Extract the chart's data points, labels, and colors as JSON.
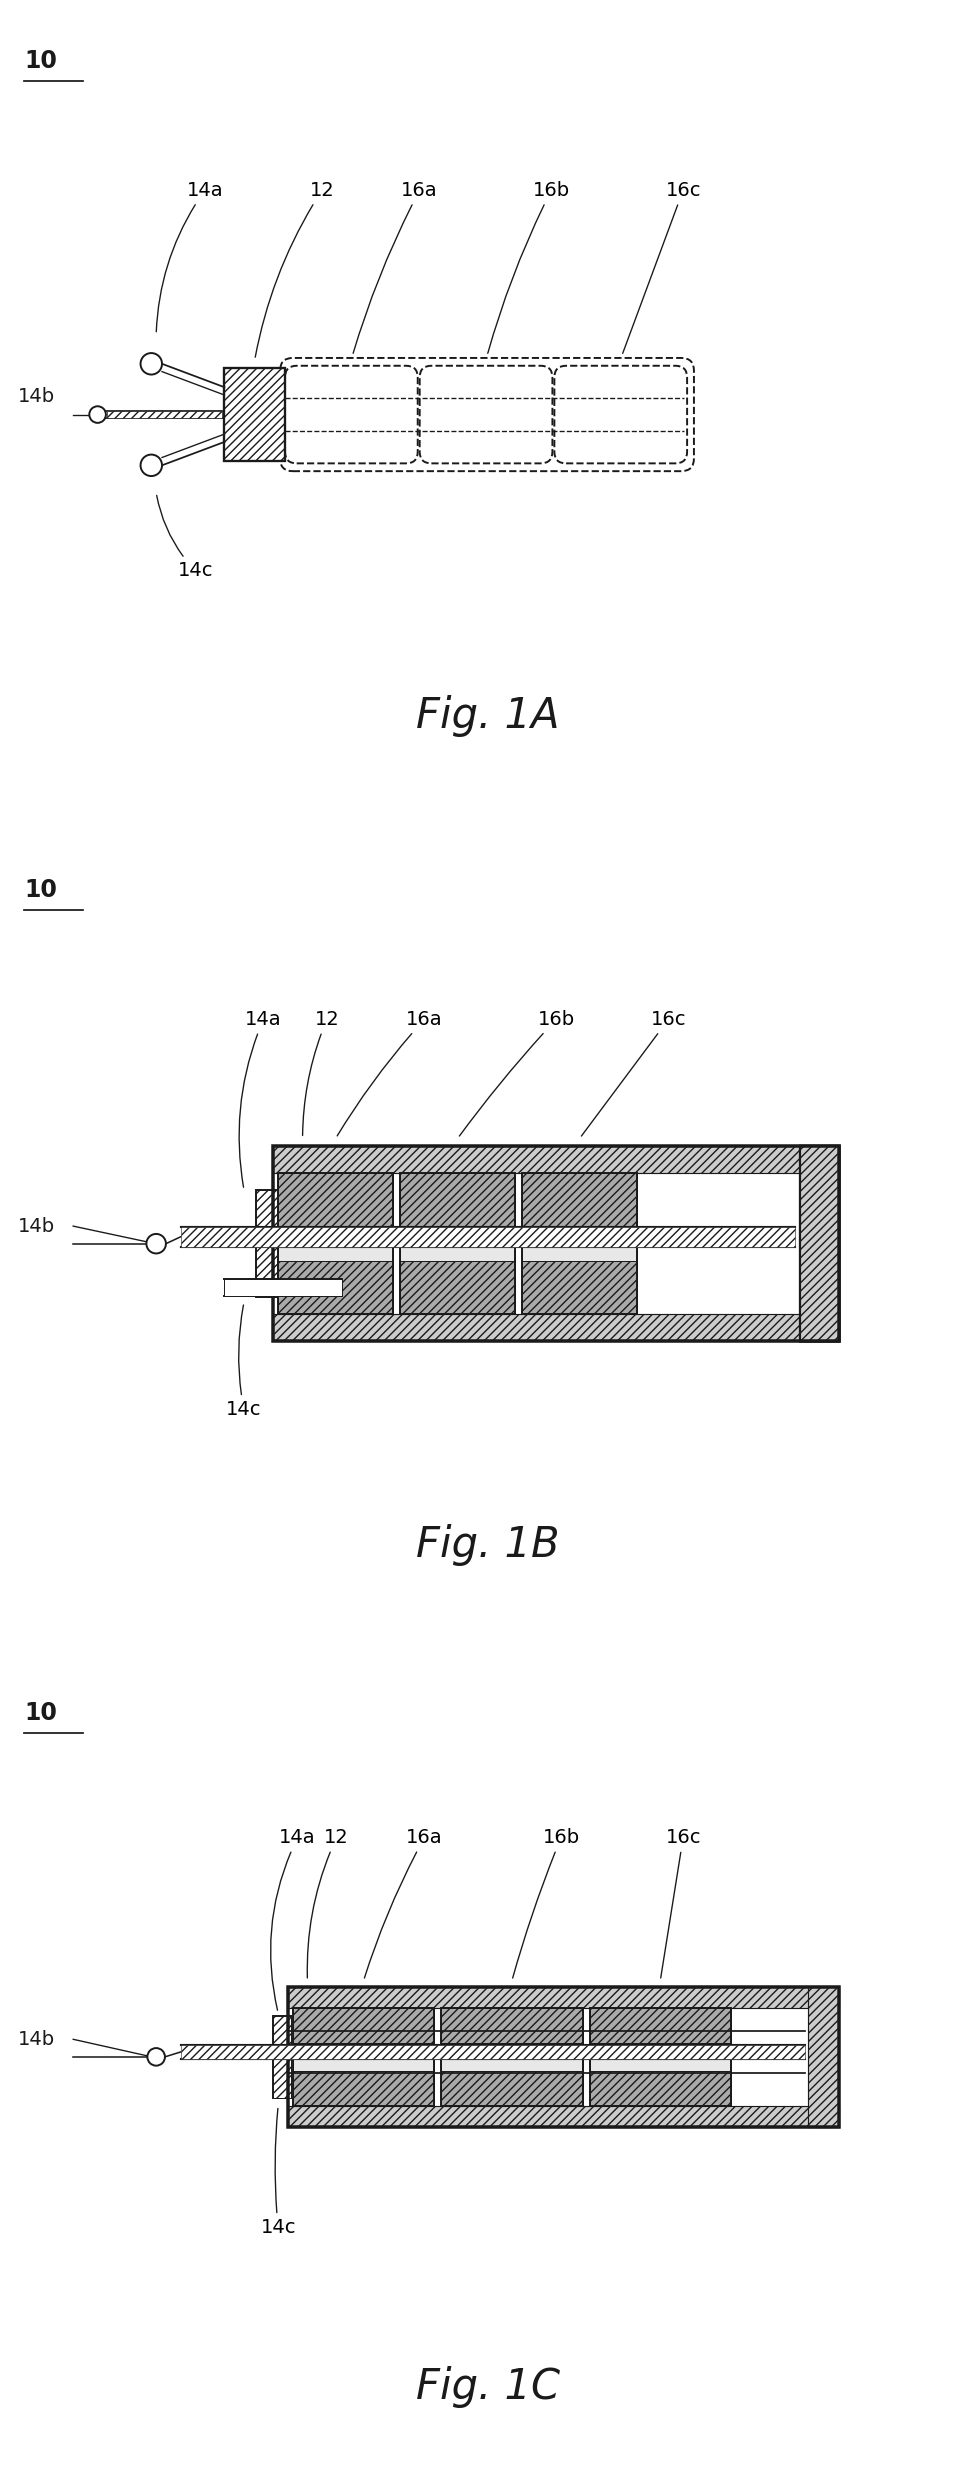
{
  "fig_labels": [
    "Fig. 1A",
    "Fig. 1B",
    "Fig. 1C"
  ],
  "ref_num_label": "10",
  "bg_color": "#ffffff",
  "line_color": "#1a1a1a",
  "lw": 1.4,
  "fig_label_fontsize": 30,
  "ref_fontsize": 17,
  "label_fontsize": 14
}
